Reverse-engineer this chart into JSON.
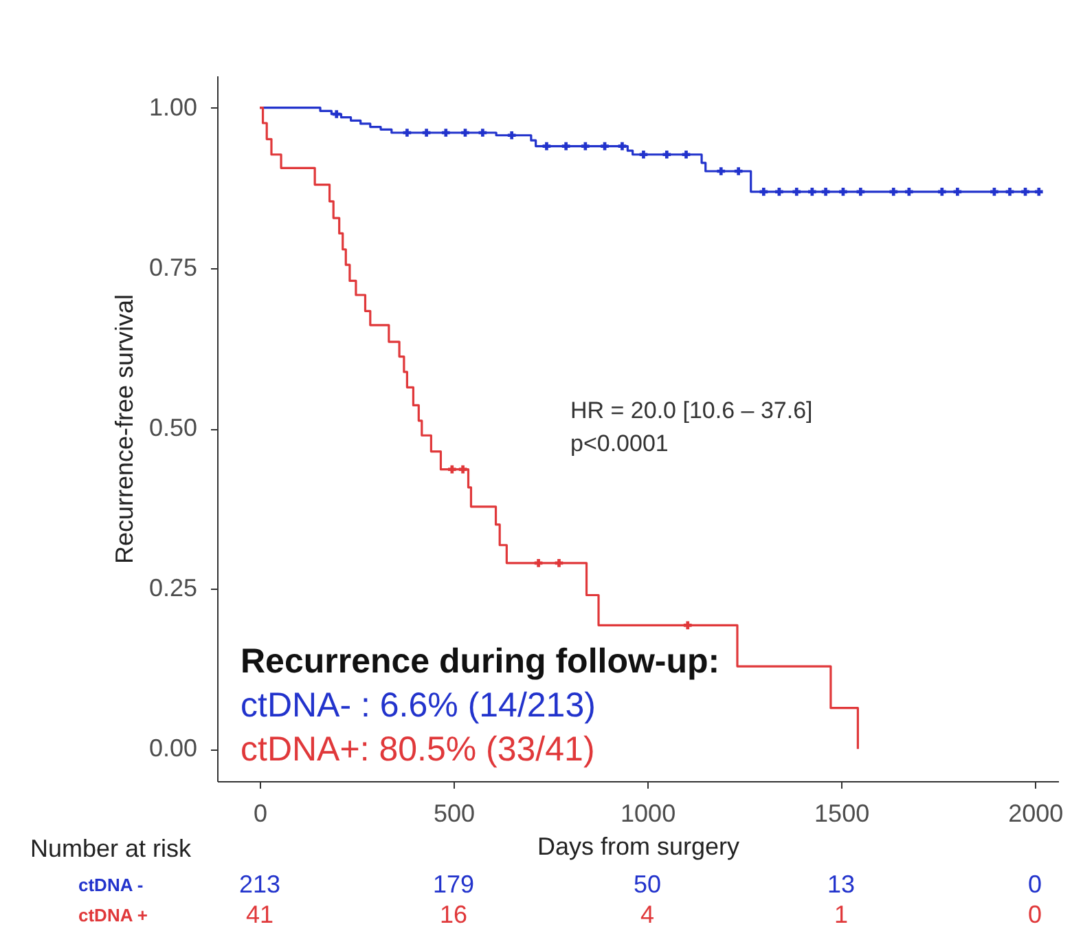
{
  "chart_data": [
    {
      "type": "step",
      "xlabel": "Days from surgery",
      "ylabel": "Recurrence-free survival",
      "legend_title": "Recurrence during follow-up:",
      "legend": "bottom left",
      "annotations": [
        "HR = 20.0 [10.6 – 37.6]",
        "p<0.0001"
      ],
      "xlim": [
        -110,
        2060
      ],
      "xticks": [
        0,
        500,
        1000,
        1500,
        2000
      ],
      "ylim": [
        -0.05,
        1.05
      ],
      "yticks": [
        {
          "value": 0,
          "label": "0.00"
        },
        0.25,
        {
          "value": 0.5,
          "label": "0.50"
        },
        0.75,
        {
          "value": 1,
          "label": "1.00"
        }
      ],
      "marker": "none",
      "series": [
        {
          "name": "ctDNA- : 6.6% (14/213)",
          "color": "#2233cc",
          "x": [
            0,
            156,
            185,
            210,
            235,
            260,
            285,
            312,
            340,
            610,
            700,
            712,
            949,
            962,
            1140,
            1150,
            1267,
            2010
          ],
          "values": [
            1.0,
            0.995,
            0.99,
            0.985,
            0.98,
            0.975,
            0.97,
            0.966,
            0.961,
            0.957,
            0.949,
            0.94,
            0.933,
            0.927,
            0.914,
            0.901,
            0.869,
            0.869
          ]
        },
        {
          "name": "ctDNA+: 80.5% (33/41)",
          "color": "#e0383a",
          "x": [
            0,
            8,
            18,
            30,
            55,
            142,
            180,
            190,
            205,
            214,
            222,
            232,
            248,
            272,
            285,
            333,
            360,
            372,
            380,
            396,
            410,
            418,
            442,
            467,
            538,
            545,
            609,
            619,
            637,
            843,
            874,
            1232,
            1473,
            1543
          ],
          "values": [
            1.0,
            0.976,
            0.951,
            0.927,
            0.906,
            0.88,
            0.854,
            0.828,
            0.804,
            0.779,
            0.755,
            0.73,
            0.708,
            0.683,
            0.661,
            0.635,
            0.612,
            0.588,
            0.564,
            0.536,
            0.512,
            0.489,
            0.464,
            0.436,
            0.408,
            0.378,
            0.35,
            0.318,
            0.29,
            0.24,
            0.193,
            0.129,
            0.064,
            0.0
          ]
        },
        {
          "type": "scatter",
          "marker": "cross",
          "color": "#2233cc",
          "x": [
            198,
            380,
            430,
            480,
            530,
            575,
            650,
            740,
            790,
            840,
            890,
            935,
            990,
            1050,
            1100,
            1190,
            1235,
            1300,
            1340,
            1385,
            1425,
            1460,
            1505,
            1550,
            1635,
            1675,
            1760,
            1800,
            1895,
            1935,
            1975,
            2010
          ],
          "values": [
            0.99,
            0.961,
            0.961,
            0.961,
            0.961,
            0.961,
            0.957,
            0.94,
            0.94,
            0.94,
            0.94,
            0.94,
            0.927,
            0.927,
            0.927,
            0.901,
            0.901,
            0.869,
            0.869,
            0.869,
            0.869,
            0.869,
            0.869,
            0.869,
            0.869,
            0.869,
            0.869,
            0.869,
            0.869,
            0.869,
            0.869,
            0.869
          ]
        },
        {
          "type": "scatter",
          "marker": "cross",
          "color": "#e0383a",
          "x": [
            496,
            524,
            719,
            772,
            1104
          ],
          "values": [
            0.436,
            0.436,
            0.29,
            0.29,
            0.193
          ]
        }
      ]
    },
    {
      "type": "other",
      "title": "Number at risk",
      "annotations": [
        "ctDNA -",
        "213",
        "179",
        "50",
        "13",
        "0",
        "ctDNA +",
        "41",
        "16",
        "4",
        "1",
        "0"
      ]
    }
  ]
}
